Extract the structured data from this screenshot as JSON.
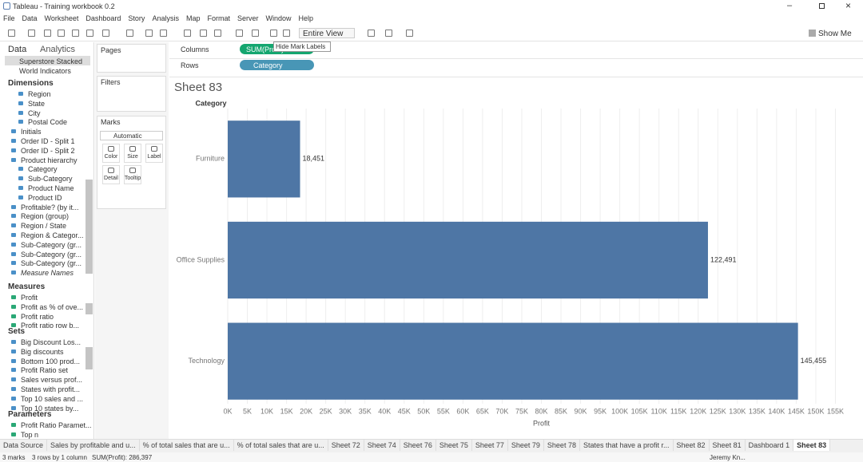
{
  "window": {
    "title": "Tableau - Training workbook 0.2",
    "menu": [
      "File",
      "Data",
      "Worksheet",
      "Dashboard",
      "Story",
      "Analysis",
      "Map",
      "Format",
      "Server",
      "Window",
      "Help"
    ]
  },
  "toolbar": {
    "view": "Entire View",
    "show_me": "Show Me",
    "tooltip": "Hide Mark Labels"
  },
  "data_pane": {
    "tabs": [
      "Data",
      "Analytics"
    ],
    "sources": [
      "Superstore Stacked",
      "World Indicators"
    ],
    "dimensions": {
      "title": "Dimensions",
      "location_fields": [
        "Region",
        "State",
        "City",
        "Postal Code"
      ],
      "fields": [
        "Initials",
        "Order ID - Split 1",
        "Order ID - Split 2"
      ],
      "hierarchy": {
        "name": "Product hierarchy",
        "fields": [
          "Category",
          "Sub-Category",
          "Product Name",
          "Product ID"
        ]
      },
      "more_fields": [
        "Profitable? (by it...",
        "Region (group)",
        "Region / State",
        "Region & Categor...",
        "Sub-Category (gr...",
        "Sub-Category (gr...",
        "Sub-Category (gr...",
        "Measure Names"
      ]
    },
    "measures": {
      "title": "Measures",
      "fields": [
        "Profit",
        "Profit as % of ove...",
        "Profit ratio",
        "Profit ratio row b..."
      ]
    },
    "sets": {
      "title": "Sets",
      "fields": [
        "Big Discount Los...",
        "Big discounts",
        "Bottom 100 prod...",
        "Profit Ratio set",
        "Sales versus prof...",
        "States with profit...",
        "Top 10 sales and ...",
        "Top 10 states by..."
      ]
    },
    "parameters": {
      "title": "Parameters",
      "fields": [
        "Profit Ratio Paramet...",
        "Top n"
      ]
    }
  },
  "cards": {
    "pages": "Pages",
    "filters": "Filters",
    "marks": "Marks",
    "mark_type": "Automatic",
    "buttons": [
      "Color",
      "Size",
      "Label",
      "Detail",
      "Tooltip"
    ]
  },
  "shelves": {
    "columns": {
      "label": "Columns",
      "pill": "SUM(Profit)"
    },
    "rows": {
      "label": "Rows",
      "pill": "Category"
    }
  },
  "sheet_title": "Sheet 83",
  "chart_data": {
    "type": "hbar",
    "y_label": "Category",
    "x_label": "Profit",
    "categories": [
      "Furniture",
      "Office Supplies",
      "Technology"
    ],
    "values": [
      18451,
      122491,
      145455
    ],
    "value_labels": [
      "18,451",
      "122,491",
      "145,455"
    ],
    "color": "#4e76a5",
    "grid": true,
    "xlim": [
      0,
      160000
    ],
    "xticks": [
      {
        "value": 0,
        "label": "0K"
      },
      {
        "value": 5000,
        "label": "5K"
      },
      {
        "value": 10000,
        "label": "10K"
      },
      {
        "value": 15000,
        "label": "15K"
      },
      {
        "value": 20000,
        "label": "20K"
      },
      {
        "value": 25000,
        "label": "25K"
      },
      {
        "value": 30000,
        "label": "30K"
      },
      {
        "value": 35000,
        "label": "35K"
      },
      {
        "value": 40000,
        "label": "40K"
      },
      {
        "value": 45000,
        "label": "45K"
      },
      {
        "value": 50000,
        "label": "50K"
      },
      {
        "value": 55000,
        "label": "55K"
      },
      {
        "value": 60000,
        "label": "60K"
      },
      {
        "value": 65000,
        "label": "65K"
      },
      {
        "value": 70000,
        "label": "70K"
      },
      {
        "value": 75000,
        "label": "75K"
      },
      {
        "value": 80000,
        "label": "80K"
      },
      {
        "value": 85000,
        "label": "85K"
      },
      {
        "value": 90000,
        "label": "90K"
      },
      {
        "value": 95000,
        "label": "95K"
      },
      {
        "value": 100000,
        "label": "100K"
      },
      {
        "value": 105000,
        "label": "105K"
      },
      {
        "value": 110000,
        "label": "110K"
      },
      {
        "value": 115000,
        "label": "115K"
      },
      {
        "value": 120000,
        "label": "120K"
      },
      {
        "value": 125000,
        "label": "125K"
      },
      {
        "value": 130000,
        "label": "130K"
      },
      {
        "value": 135000,
        "label": "135K"
      },
      {
        "value": 140000,
        "label": "140K"
      },
      {
        "value": 145000,
        "label": "145K"
      },
      {
        "value": 150000,
        "label": "150K"
      },
      {
        "value": 155000,
        "label": "155K"
      }
    ]
  },
  "tabs": [
    "Data Source",
    "Sales by profitable and u...",
    "% of total sales that are u...",
    "% of total sales that are u...",
    "Sheet 72",
    "Sheet 74",
    "Sheet 76",
    "Sheet 75",
    "Sheet 77",
    "Sheet 79",
    "Sheet 78",
    "States that have a profit r...",
    "Sheet 82",
    "Sheet 81",
    "Dashboard 1",
    "Sheet 83"
  ],
  "status": {
    "marks": "3 marks",
    "shape": "3 rows by 1 column",
    "sum": "SUM(Profit): 286,397",
    "user": "Jeremy Kn..."
  }
}
